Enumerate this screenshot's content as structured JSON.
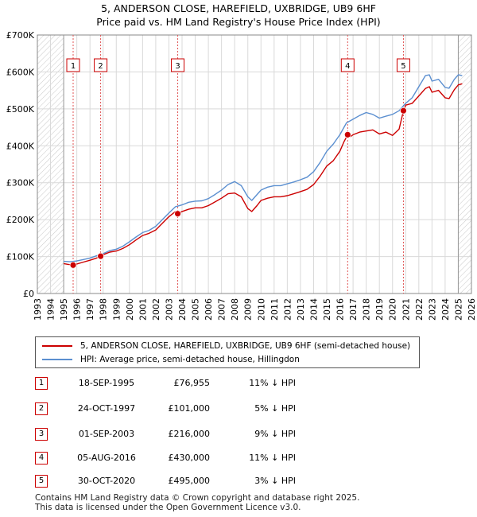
{
  "chart_data": {
    "type": "line",
    "title": "5, ANDERSON CLOSE, HAREFIELD, UXBRIDGE, UB9 6HF",
    "subtitle": "Price paid vs. HM Land Registry's House Price Index (HPI)",
    "xlim": [
      1993,
      2026
    ],
    "ylim": [
      0,
      700000
    ],
    "x_ticks": [
      "1993",
      "1994",
      "1995",
      "1996",
      "1997",
      "1998",
      "1999",
      "2000",
      "2001",
      "2002",
      "2003",
      "2004",
      "2005",
      "2006",
      "2007",
      "2008",
      "2009",
      "2010",
      "2011",
      "2012",
      "2013",
      "2014",
      "2015",
      "2016",
      "2017",
      "2018",
      "2019",
      "2020",
      "2021",
      "2022",
      "2023",
      "2024",
      "2025",
      "2026"
    ],
    "y_ticks": [
      {
        "value": 0,
        "label": "£0"
      },
      {
        "value": 100000,
        "label": "£100K"
      },
      {
        "value": 200000,
        "label": "£200K"
      },
      {
        "value": 300000,
        "label": "£300K"
      },
      {
        "value": 400000,
        "label": "£400K"
      },
      {
        "value": 500000,
        "label": "£500K"
      },
      {
        "value": 600000,
        "label": "£600K"
      },
      {
        "value": 700000,
        "label": "£700K"
      }
    ],
    "hatch_ranges": [
      [
        1993,
        1995.0
      ],
      [
        2025.0,
        2026
      ]
    ],
    "series": [
      {
        "name": "5, ANDERSON CLOSE, HAREFIELD, UXBRIDGE, UB9 6HF (semi-detached house)",
        "color": "#cc0000",
        "x": [
          1995.0,
          1995.3,
          1995.72,
          1996.0,
          1996.5,
          1997.0,
          1997.5,
          1997.81,
          1998.0,
          1998.5,
          1999.0,
          1999.5,
          2000.0,
          2000.5,
          2001.0,
          2001.5,
          2002.0,
          2002.5,
          2003.0,
          2003.5,
          2003.67,
          2004.0,
          2004.5,
          2005.0,
          2005.5,
          2006.0,
          2006.5,
          2007.0,
          2007.5,
          2008.0,
          2008.5,
          2009.0,
          2009.3,
          2009.7,
          2010.0,
          2010.5,
          2011.0,
          2011.5,
          2012.0,
          2012.5,
          2013.0,
          2013.5,
          2014.0,
          2014.5,
          2015.0,
          2015.5,
          2016.0,
          2016.3,
          2016.59,
          2016.8,
          2017.0,
          2017.5,
          2018.0,
          2018.5,
          2019.0,
          2019.5,
          2020.0,
          2020.5,
          2020.83,
          2021.0,
          2021.5,
          2022.0,
          2022.5,
          2022.8,
          2023.0,
          2023.5,
          2024.0,
          2024.3,
          2024.7,
          2025.0,
          2025.3
        ],
        "y": [
          81000,
          79000,
          76955,
          80000,
          85000,
          90000,
          96000,
          101000,
          105000,
          112000,
          115000,
          122000,
          132000,
          145000,
          157000,
          163000,
          172000,
          190000,
          208000,
          222000,
          216000,
          222000,
          228000,
          232000,
          232000,
          238000,
          248000,
          258000,
          270000,
          272000,
          262000,
          230000,
          222000,
          238000,
          252000,
          258000,
          262000,
          262000,
          265000,
          270000,
          276000,
          282000,
          295000,
          318000,
          345000,
          360000,
          385000,
          410000,
          430000,
          425000,
          430000,
          437000,
          440000,
          443000,
          432000,
          437000,
          428000,
          445000,
          495000,
          510000,
          515000,
          535000,
          555000,
          560000,
          545000,
          550000,
          530000,
          528000,
          552000,
          565000,
          568000
        ]
      },
      {
        "name": "HPI: Average price, semi-detached house, Hillingdon",
        "color": "#5b8fd0",
        "x": [
          1995.0,
          1995.5,
          1996.0,
          1996.5,
          1997.0,
          1997.5,
          1998.0,
          1998.5,
          1999.0,
          1999.5,
          2000.0,
          2000.5,
          2001.0,
          2001.5,
          2002.0,
          2002.5,
          2003.0,
          2003.5,
          2004.0,
          2004.5,
          2005.0,
          2005.5,
          2006.0,
          2006.5,
          2007.0,
          2007.5,
          2008.0,
          2008.5,
          2009.0,
          2009.3,
          2009.7,
          2010.0,
          2010.5,
          2011.0,
          2011.5,
          2012.0,
          2012.5,
          2013.0,
          2013.5,
          2014.0,
          2014.5,
          2015.0,
          2015.5,
          2016.0,
          2016.5,
          2017.0,
          2017.5,
          2018.0,
          2018.5,
          2019.0,
          2019.5,
          2020.0,
          2020.5,
          2021.0,
          2021.5,
          2022.0,
          2022.5,
          2022.8,
          2023.0,
          2023.5,
          2024.0,
          2024.3,
          2024.7,
          2025.0,
          2025.3
        ],
        "y": [
          87000,
          86000,
          88000,
          92000,
          96000,
          102000,
          108000,
          116000,
          120000,
          128000,
          140000,
          153000,
          165000,
          171000,
          182000,
          200000,
          218000,
          235000,
          240000,
          247000,
          250000,
          251000,
          257000,
          268000,
          280000,
          295000,
          303000,
          292000,
          262000,
          252000,
          268000,
          280000,
          288000,
          292000,
          292000,
          297000,
          302000,
          308000,
          315000,
          330000,
          355000,
          385000,
          405000,
          430000,
          462000,
          472000,
          482000,
          490000,
          485000,
          475000,
          480000,
          485000,
          495000,
          515000,
          530000,
          560000,
          590000,
          592000,
          575000,
          580000,
          558000,
          556000,
          580000,
          592000,
          590000
        ]
      }
    ],
    "markers": [
      {
        "label": "1",
        "x": 1995.72,
        "y": 76955
      },
      {
        "label": "2",
        "x": 1997.81,
        "y": 101000
      },
      {
        "label": "3",
        "x": 2003.67,
        "y": 216000
      },
      {
        "label": "4",
        "x": 2016.59,
        "y": 430000
      },
      {
        "label": "5",
        "x": 2020.83,
        "y": 495000
      }
    ]
  },
  "legend": {
    "property_label": "5, ANDERSON CLOSE, HAREFIELD, UXBRIDGE, UB9 6HF (semi-detached house)",
    "hpi_label": "HPI: Average price, semi-detached house, Hillingdon"
  },
  "sales": [
    {
      "num": "1",
      "date": "18-SEP-1995",
      "price": "£76,955",
      "hpi": "11% ↓ HPI"
    },
    {
      "num": "2",
      "date": "24-OCT-1997",
      "price": "£101,000",
      "hpi": "5% ↓ HPI"
    },
    {
      "num": "3",
      "date": "01-SEP-2003",
      "price": "£216,000",
      "hpi": "9% ↓ HPI"
    },
    {
      "num": "4",
      "date": "05-AUG-2016",
      "price": "£430,000",
      "hpi": "11% ↓ HPI"
    },
    {
      "num": "5",
      "date": "30-OCT-2020",
      "price": "£495,000",
      "hpi": "3% ↓ HPI"
    }
  ],
  "footer": {
    "line1": "Contains HM Land Registry data © Crown copyright and database right 2025.",
    "line2": "This data is licensed under the Open Government Licence v3.0."
  }
}
